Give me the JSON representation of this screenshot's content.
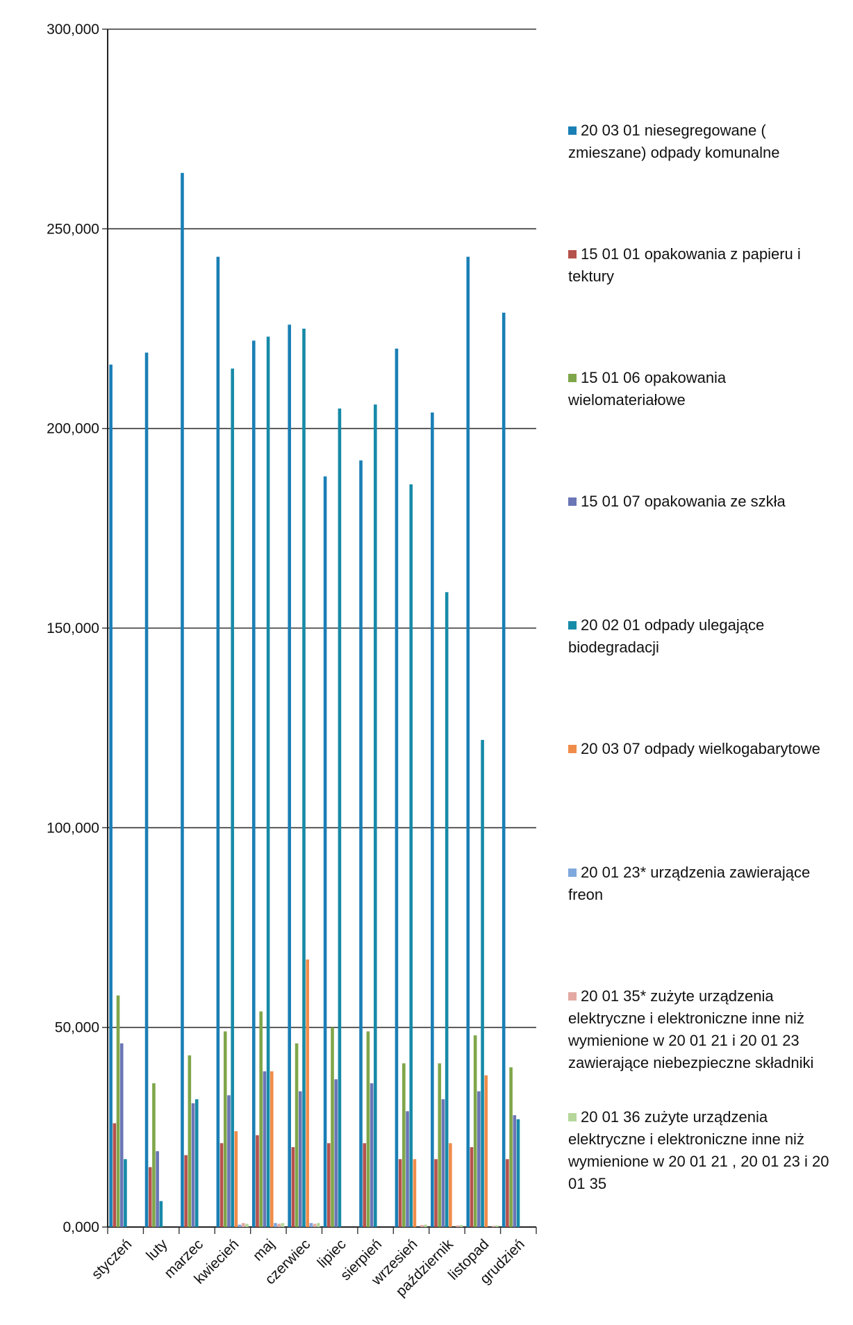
{
  "chart_data": {
    "type": "bar",
    "title": "",
    "xlabel": "",
    "ylabel": "",
    "ylim": [
      0,
      300000
    ],
    "yticks": [
      0,
      50000,
      100000,
      150000,
      200000,
      250000,
      300000
    ],
    "ytick_labels": [
      "0,000",
      "50,000",
      "100,000",
      "150,000",
      "200,000",
      "250,000",
      "300,000"
    ],
    "grid": true,
    "legend_position": "right",
    "categories": [
      "styczeń",
      "luty",
      "marzec",
      "kwiecień",
      "maj",
      "czerwiec",
      "lipiec",
      "sierpień",
      "wrzesień",
      "październik",
      "listopad",
      "grudzień"
    ],
    "series": [
      {
        "name": "20 03 01   niesegregowane   ( zmieszane) odpady komunalne",
        "color": "#1a7fb5",
        "values": [
          216000,
          219000,
          264000,
          243000,
          222000,
          226000,
          188000,
          192000,
          220000,
          204000,
          243000,
          229000
        ]
      },
      {
        "name": "15 01 01  opakowania z papieru i tektury",
        "color": "#b5524c",
        "values": [
          26000,
          15000,
          18000,
          21000,
          23000,
          20000,
          21000,
          21000,
          17000,
          17000,
          20000,
          17000
        ]
      },
      {
        "name": "15 01 06 opakowania wielomateriałowe",
        "color": "#7fa64a",
        "values": [
          58000,
          36000,
          43000,
          49000,
          54000,
          46000,
          50000,
          49000,
          41000,
          41000,
          48000,
          40000
        ]
      },
      {
        "name": "15 01 07 opakowania ze szkła",
        "color": "#6a76b5",
        "values": [
          46000,
          19000,
          31000,
          33000,
          39000,
          34000,
          37000,
          36000,
          29000,
          32000,
          34000,
          28000
        ]
      },
      {
        "name": "20 02 01    odpady ulegające biodegradacji",
        "color": "#178aa8",
        "values": [
          17000,
          6500,
          32000,
          215000,
          223000,
          225000,
          205000,
          206000,
          186000,
          159000,
          122000,
          27000
        ]
      },
      {
        "name": "20 03 07    odpady wielkogabarytowe",
        "color": "#f08c4a",
        "values": [
          0,
          0,
          0,
          24000,
          39000,
          67000,
          0,
          0,
          17000,
          21000,
          38000,
          0
        ]
      },
      {
        "name": "20 01 23*  urządzenia zawierające freon",
        "color": "#7fa8dc",
        "values": [
          0,
          0,
          0,
          600,
          1000,
          1000,
          0,
          0,
          0,
          0,
          0,
          0
        ]
      },
      {
        "name": "20 01 35* zużyte urządzenia elektryczne i elektroniczne inne niż wymienione w 20 01 21 i 20 01 23 zawierające  niebezpieczne składniki",
        "color": "#e3a9a3",
        "values": [
          0,
          0,
          0,
          1000,
          800,
          800,
          0,
          0,
          500,
          400,
          300,
          0
        ]
      },
      {
        "name": "20 01 36 zużyte urządzenia elektryczne i elektroniczne inne niż wymienione w 20 01 21 , 20 01 23  i 20 01 35",
        "color": "#b5d79b",
        "values": [
          0,
          0,
          0,
          800,
          1000,
          1000,
          0,
          0,
          600,
          500,
          400,
          0
        ]
      }
    ]
  }
}
